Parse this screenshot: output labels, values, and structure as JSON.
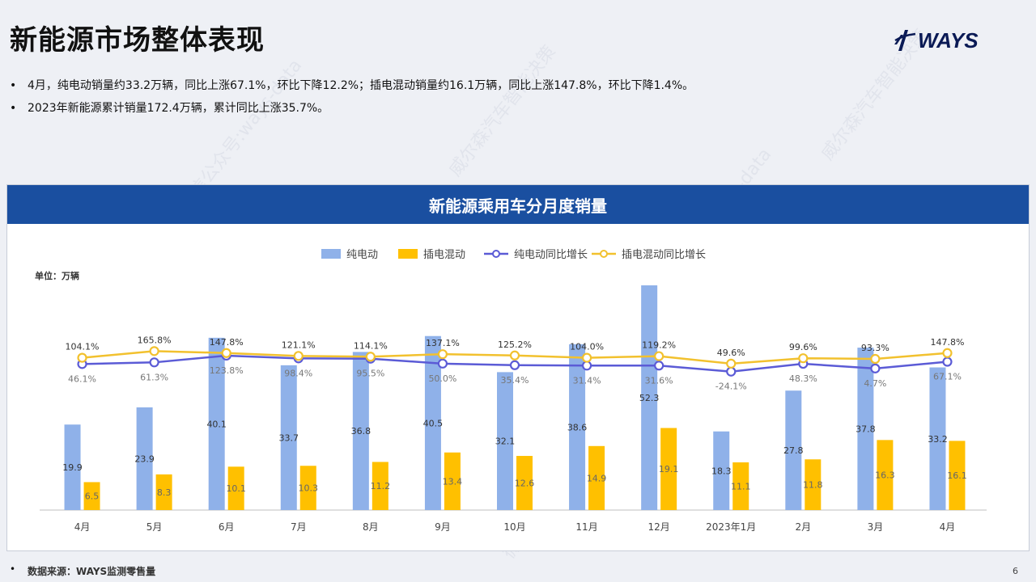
{
  "page": {
    "title": "新能源市场整体表现",
    "logo_text": "WAYS",
    "bullets": [
      "4月，纯电动销量约33.2万辆，同比上涨67.1%，环比下降12.2%；插电混动销量约16.1万辆，同比上涨147.8%，环比下降1.4%。",
      "2023年新能源累计销量172.4万辆，累计同比上涨35.7%。"
    ],
    "source": "数据来源：WAYS监测零售量",
    "page_number": "6",
    "watermarks": [
      "威尔森汽车智能决策",
      "微信公众号:ways-data",
      "威尔森汽车智能决策",
      "微信公众号:ways-data",
      "威尔森汽车智能决策",
      "微信公众号:ways-data"
    ]
  },
  "colors": {
    "header": "#1a4fa0",
    "bev_bar": "#8fb1e9",
    "phev_bar": "#ffc000",
    "bev_line": "#5b5bd6",
    "phev_line": "#f2c12e"
  },
  "chart_data": {
    "type": "bar",
    "title": "新能源乘用车分月度销量",
    "unit_label": "单位：万辆",
    "categories": [
      "4月",
      "5月",
      "6月",
      "7月",
      "8月",
      "9月",
      "10月",
      "11月",
      "12月",
      "2023年1月",
      "2月",
      "3月",
      "4月"
    ],
    "series": [
      {
        "name": "纯电动",
        "kind": "bar",
        "values": [
          19.9,
          23.9,
          40.1,
          33.7,
          36.8,
          40.5,
          32.1,
          38.6,
          52.3,
          18.3,
          27.8,
          37.8,
          33.2
        ]
      },
      {
        "name": "插电混动",
        "kind": "bar",
        "values": [
          6.5,
          8.3,
          10.1,
          10.3,
          11.2,
          13.4,
          12.6,
          14.9,
          19.1,
          11.1,
          11.8,
          16.3,
          16.1
        ]
      },
      {
        "name": "纯电动同比增长",
        "kind": "line",
        "values": [
          46.1,
          61.3,
          123.8,
          98.4,
          95.5,
          50.0,
          35.4,
          31.4,
          31.6,
          -24.1,
          48.3,
          4.7,
          67.1
        ],
        "labels": [
          "46.1%",
          "61.3%",
          "123.8%",
          "98.4%",
          "95.5%",
          "50.0%",
          "35.4%",
          "31.4%",
          "31.6%",
          "-24.1%",
          "48.3%",
          "4.7%",
          "67.1%"
        ]
      },
      {
        "name": "插电混动同比增长",
        "kind": "line",
        "values": [
          104.1,
          165.8,
          147.8,
          121.1,
          114.1,
          137.1,
          125.2,
          104.0,
          119.2,
          49.6,
          99.6,
          93.3,
          147.8
        ],
        "labels": [
          "104.1%",
          "165.8%",
          "147.8%",
          "121.1%",
          "114.1%",
          "137.1%",
          "125.2%",
          "104.0%",
          "119.2%",
          "49.6%",
          "99.6%",
          "93.3%",
          "147.8%"
        ]
      }
    ],
    "bar_labels": {
      "bev": [
        "19.9",
        "23.9",
        "40.1",
        "33.7",
        "36.8",
        "40.5",
        "32.1",
        "38.6",
        "52.3",
        "18.3",
        "27.8",
        "37.8",
        "33.2"
      ],
      "phev": [
        "6.5",
        "8.3",
        "10.1",
        "10.3",
        "11.2",
        "13.4",
        "12.6",
        "14.9",
        "19.1",
        "11.1",
        "11.8",
        "16.3",
        "16.1"
      ]
    },
    "ylim_bars": [
      0,
      52.3
    ],
    "legend_position": "top-center",
    "grid": false
  }
}
